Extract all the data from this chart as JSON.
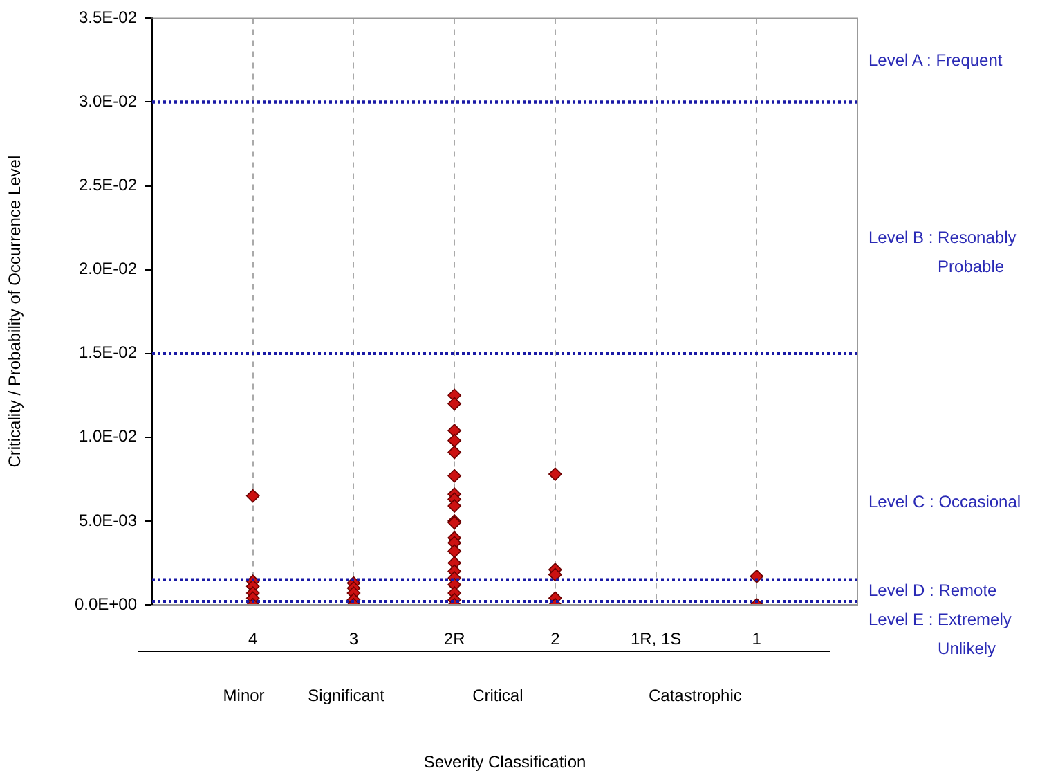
{
  "chart_data": {
    "type": "scatter",
    "ylabel": "Criticality / Probability of Occurrence Level",
    "categories": [
      null,
      "4",
      "3",
      "2R",
      "2",
      "1R, 1S",
      "1",
      null
    ],
    "series": [
      {
        "color": "#cc1111",
        "x": [
          "4",
          "4",
          "4",
          "4",
          "4",
          "4",
          "3",
          "3",
          "3",
          "3",
          "3",
          "2R",
          "2R",
          "2R",
          "2R",
          "2R",
          "2R",
          "2R",
          "2R",
          "2R",
          "2R",
          "2R",
          "2R",
          "2R",
          "2R",
          "2R",
          "2R",
          "2R",
          "2R",
          "2R",
          "2R",
          "2R",
          "2",
          "2",
          "2",
          "2",
          "2",
          "1",
          "1"
        ],
        "values": [
          0.0065,
          0.0014,
          0.0011,
          0.0007,
          0.0004,
          0,
          0.0013,
          0.001,
          0.0007,
          0.0003,
          0,
          0.0125,
          0.012,
          0.0104,
          0.0098,
          0.0091,
          0.0077,
          0.0066,
          0.0063,
          0.0059,
          0.005,
          0.0049,
          0.004,
          0.0037,
          0.0032,
          0.0025,
          0.002,
          0.0016,
          0.0012,
          0.0007,
          0.0003,
          0,
          0.0078,
          0.0021,
          0.0018,
          0.0004,
          0,
          0.0017,
          0
        ]
      }
    ],
    "ylim": [
      0,
      0.035
    ],
    "yticks": [
      {
        "value": 0,
        "label": "0.0E+00"
      },
      {
        "value": 0.005,
        "label": "5.0E-03"
      },
      {
        "value": 0.01,
        "label": "1.0E-02"
      },
      {
        "value": 0.015,
        "label": "1.5E-02"
      },
      {
        "value": 0.02,
        "label": "2.0E-02"
      },
      {
        "value": 0.025,
        "label": "2.5E-02"
      },
      {
        "value": 0.03,
        "label": "3.0E-02"
      },
      {
        "value": 0.035,
        "label": "3.5E-02"
      }
    ],
    "grid": "x",
    "legend": false,
    "marker": "diamond",
    "ref_lines": [
      {
        "axis": "y",
        "value": 0.03,
        "label": null,
        "color": "#1a1aa6",
        "line_style": "dotted"
      },
      {
        "axis": "y",
        "value": 0.015,
        "label": null,
        "color": "#1a1aa6",
        "line_style": "dotted"
      },
      {
        "axis": "y",
        "value": 0.0015,
        "label": null,
        "color": "#1a1aa6",
        "line_style": "dotted"
      },
      {
        "axis": "y",
        "value": 0.0002,
        "label": null,
        "color": "#1a1aa6",
        "line_style": "dotted"
      }
    ],
    "annotations": [
      "Minor",
      "Significant",
      "Critical",
      "Catastrophic",
      "Level A : Frequent",
      "Level B : Resonably\nProbable",
      "Level C : Occasional",
      "Level D : Remote",
      "Level E : Extremely\nUnlikely",
      "Severity Classification"
    ]
  }
}
